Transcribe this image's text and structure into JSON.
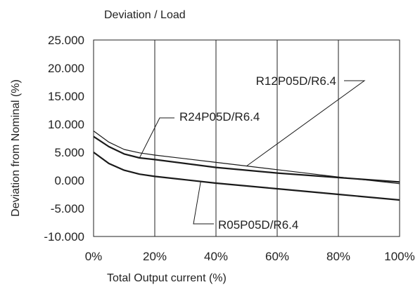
{
  "chart_data": {
    "type": "line",
    "title": "Deviation / Load",
    "xlabel": "Total Output current (%)",
    "ylabel": "Deviation from Nominal (%)",
    "xlim": [
      0,
      100
    ],
    "ylim": [
      -10,
      25
    ],
    "x_ticks": [
      0,
      20,
      40,
      60,
      80,
      100
    ],
    "x_tick_labels": [
      "0%",
      "20%",
      "40%",
      "60%",
      "80%",
      "100%"
    ],
    "y_ticks": [
      -10,
      -5,
      0,
      5,
      10,
      15,
      20,
      25
    ],
    "y_tick_labels": [
      "-10.000",
      "-5.000",
      "0.000",
      "5.000",
      "10.000",
      "15.000",
      "20.000",
      "25.000"
    ],
    "grid": "vertical",
    "colors": {
      "line": "#1a1a1a",
      "grid": "#222222",
      "text": "#222222"
    },
    "series": [
      {
        "name": "R12P05D/R6.4",
        "x": [
          0,
          5,
          10,
          15,
          20,
          40,
          60,
          80,
          100
        ],
        "y": [
          8.8,
          6.8,
          5.5,
          4.9,
          4.5,
          3.2,
          1.9,
          0.6,
          -0.6
        ]
      },
      {
        "name": "R24P05D/R6.4",
        "x": [
          0,
          5,
          10,
          15,
          20,
          40,
          60,
          80,
          100
        ],
        "y": [
          7.8,
          6.0,
          4.7,
          4.0,
          3.7,
          2.3,
          1.3,
          0.5,
          -0.3
        ]
      },
      {
        "name": "R05P05D/R6.4",
        "x": [
          0,
          5,
          10,
          15,
          20,
          30,
          40,
          60,
          80,
          100
        ],
        "y": [
          5.0,
          3.0,
          1.8,
          1.1,
          0.7,
          0.1,
          -0.5,
          -1.5,
          -2.5,
          -3.5
        ]
      }
    ],
    "annotations": [
      {
        "text": "R12P05D/R6.4",
        "series": 0,
        "point_x": 50
      },
      {
        "text": "R24P05D/R6.4",
        "series": 1,
        "point_x": 15
      },
      {
        "text": "R05P05D/R6.4",
        "series": 2,
        "point_x": 35
      }
    ]
  }
}
